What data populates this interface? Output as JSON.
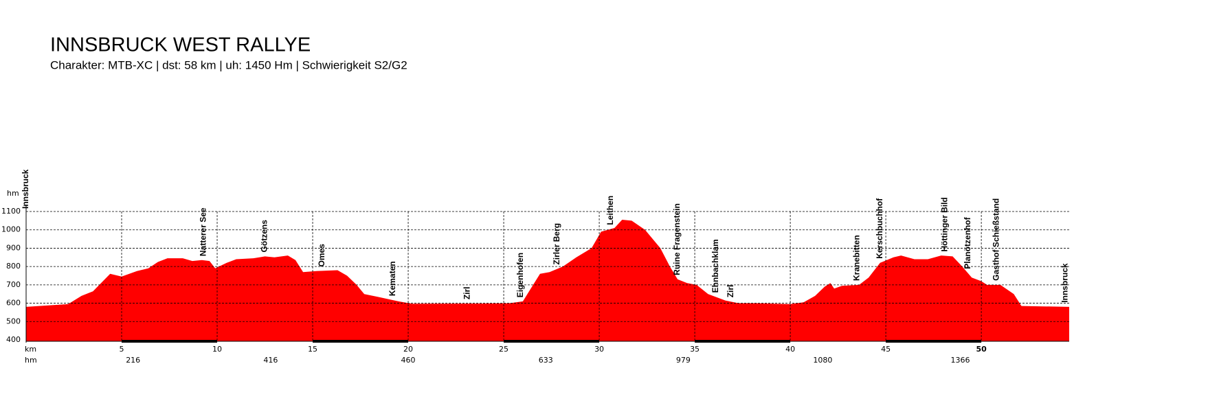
{
  "chart_data": {
    "type": "area",
    "title": "INNSBRUCK WEST RALLYE",
    "subtitle": "Charakter: MTB-XC | dst: 58 km | uh: 1450 Hm | Schwierigkeit S2/G2",
    "x_label": "km",
    "y_label": "hm",
    "color": "#ff0000",
    "grid": true,
    "xlim": [
      0,
      54.6
    ],
    "ylim": [
      400,
      1100
    ],
    "xticks": [
      5,
      10,
      15,
      20,
      25,
      30,
      35,
      40,
      45,
      50
    ],
    "yticks": [
      400,
      500,
      600,
      700,
      800,
      900,
      1000,
      1100
    ],
    "x": [
      0,
      2.2,
      2.9,
      3.5,
      4.4,
      5.0,
      5.8,
      6.4,
      6.9,
      7.4,
      8.2,
      8.7,
      9.2,
      9.6,
      9.9,
      10.5,
      11.0,
      11.9,
      12.5,
      13.0,
      13.7,
      14.1,
      14.5,
      15.2,
      16.3,
      16.8,
      17.3,
      17.7,
      18.4,
      19.5,
      20.2,
      23.8,
      25.3,
      26.0,
      26.3,
      26.9,
      27.4,
      28.1,
      28.8,
      29.6,
      30.1,
      30.8,
      31.2,
      31.7,
      32.4,
      33.2,
      33.7,
      34.1,
      34.6,
      35.1,
      35.7,
      36.6,
      37.3,
      38.2,
      40.0,
      40.7,
      41.3,
      41.8,
      42.1,
      42.3,
      42.7,
      43.6,
      44.1,
      44.7,
      45.4,
      45.8,
      46.5,
      47.2,
      47.9,
      48.5,
      49.0,
      49.5,
      50.0,
      50.3,
      51.0,
      51.7,
      52.1,
      54.6
    ],
    "values": [
      580,
      595,
      640,
      665,
      760,
      745,
      775,
      790,
      825,
      845,
      845,
      830,
      835,
      830,
      790,
      820,
      840,
      845,
      855,
      850,
      860,
      835,
      770,
      775,
      780,
      750,
      700,
      650,
      635,
      610,
      597,
      598,
      600,
      610,
      660,
      760,
      770,
      800,
      850,
      900,
      990,
      1010,
      1055,
      1050,
      1000,
      900,
      800,
      730,
      710,
      700,
      650,
      615,
      600,
      600,
      595,
      605,
      640,
      690,
      710,
      680,
      695,
      700,
      740,
      820,
      850,
      860,
      840,
      840,
      860,
      855,
      800,
      740,
      720,
      700,
      700,
      650,
      585,
      580
    ],
    "waypoints": [
      {
        "km": 0,
        "label": "Innsbruck"
      },
      {
        "km": 9.3,
        "label": "Natterer See"
      },
      {
        "km": 12.5,
        "label": "Götzens"
      },
      {
        "km": 15.5,
        "label": "Omes"
      },
      {
        "km": 19.2,
        "label": "Kematen"
      },
      {
        "km": 23.1,
        "label": "Zirl"
      },
      {
        "km": 25.9,
        "label": "Eigenhofen"
      },
      {
        "km": 27.8,
        "label": "Zirler Berg"
      },
      {
        "km": 30.6,
        "label": "Leithen"
      },
      {
        "km": 34.1,
        "label": "Ruine Fragenstein"
      },
      {
        "km": 36.1,
        "label": "Ehnbachklam"
      },
      {
        "km": 36.9,
        "label": "Zirl"
      },
      {
        "km": 43.5,
        "label": "Kranebitten"
      },
      {
        "km": 44.7,
        "label": "Kerschbuchhof"
      },
      {
        "km": 48.1,
        "label": "Höttinger Bild"
      },
      {
        "km": 49.3,
        "label": "Planötzenhof"
      },
      {
        "km": 50.8,
        "label": "Gasthof Schießstand"
      },
      {
        "km": 54.4,
        "label": "Innsbruck"
      }
    ],
    "ascent_markers": [
      {
        "km": 5.6,
        "value": 216
      },
      {
        "km": 12.8,
        "value": 416
      },
      {
        "km": 20.0,
        "value": 460
      },
      {
        "km": 27.2,
        "value": 633
      },
      {
        "km": 34.4,
        "value": 979
      },
      {
        "km": 41.7,
        "value": 1080
      },
      {
        "km": 48.9,
        "value": 1366
      }
    ]
  }
}
